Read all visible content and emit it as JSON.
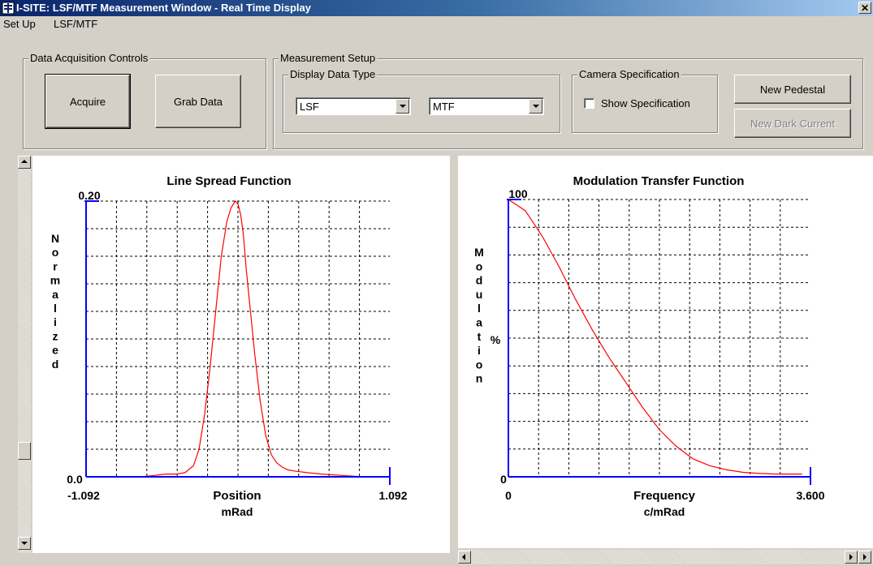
{
  "window": {
    "title": "I-SITE:  LSF/MTF Measurement Window - Real Time Display",
    "close_glyph": "✕"
  },
  "menu": {
    "items": [
      "Set Up",
      "LSF/MTF"
    ]
  },
  "acquisition": {
    "legend": "Data Acquisition Controls",
    "acquire_label": "Acquire",
    "grab_label": "Grab Data"
  },
  "measurement": {
    "legend": "Measurement Setup",
    "display_type": {
      "legend": "Display Data Type",
      "left_value": "LSF",
      "right_value": "MTF"
    },
    "camera": {
      "legend": "Camera Specification",
      "show_spec_label": "Show Specification",
      "show_spec_checked": false
    },
    "new_pedestal_label": "New Pedestal",
    "new_dark_current_label": "New Dark Current"
  },
  "colors": {
    "curve": "#ff0000",
    "axis": "#0000ff",
    "titlebar": "#0a246a"
  },
  "chart_data": [
    {
      "type": "line",
      "title": "Line Spread Function",
      "ylabel": "Normalized",
      "xlabel": "Position",
      "xunit": "mRad",
      "y_top_label": "0.20",
      "y_bottom_label": "0.0",
      "x_left_label": "-1.092",
      "x_right_label": "1.092",
      "xlim": [
        -1.092,
        1.092
      ],
      "ylim": [
        0,
        0.2
      ],
      "grid": true,
      "series": [
        {
          "x": [
            -1.092,
            -0.9,
            -0.7,
            -0.6,
            -0.52,
            -0.44,
            -0.38,
            -0.32,
            -0.28,
            -0.24,
            -0.2,
            -0.16,
            -0.12,
            -0.08,
            -0.05,
            -0.02,
            0.0,
            0.02,
            0.04,
            0.06,
            0.09,
            0.12,
            0.16,
            0.2,
            0.24,
            0.28,
            0.32,
            0.36,
            0.42,
            0.5,
            0.6,
            0.75,
            0.9,
            1.092
          ],
          "y": [
            0.0,
            0.0,
            0.0,
            0.001,
            0.002,
            0.002,
            0.003,
            0.008,
            0.02,
            0.045,
            0.08,
            0.12,
            0.16,
            0.185,
            0.195,
            0.2,
            0.198,
            0.19,
            0.175,
            0.15,
            0.12,
            0.09,
            0.055,
            0.03,
            0.016,
            0.01,
            0.007,
            0.005,
            0.004,
            0.003,
            0.002,
            0.001,
            0.0,
            0.0
          ]
        }
      ]
    },
    {
      "type": "line",
      "title": "Modulation Transfer Function",
      "ylabel": "Modulation",
      "yunit": "%",
      "xlabel": "Frequency",
      "xunit": "c/mRad",
      "y_top_label": "100",
      "y_bottom_label": "0",
      "x_left_label": "0",
      "x_right_label": "3.600",
      "xlim": [
        0,
        3.6
      ],
      "ylim": [
        0,
        100
      ],
      "grid": true,
      "series": [
        {
          "x": [
            0,
            0.2,
            0.4,
            0.6,
            0.8,
            1.0,
            1.2,
            1.4,
            1.6,
            1.8,
            2.0,
            2.2,
            2.4,
            2.6,
            2.8,
            3.0,
            3.2,
            3.4,
            3.5
          ],
          "y": [
            100,
            96,
            87,
            76,
            64,
            53,
            43,
            34,
            25,
            17,
            11,
            6.5,
            4,
            2.5,
            1.6,
            1.2,
            1,
            1,
            1
          ]
        }
      ]
    }
  ]
}
